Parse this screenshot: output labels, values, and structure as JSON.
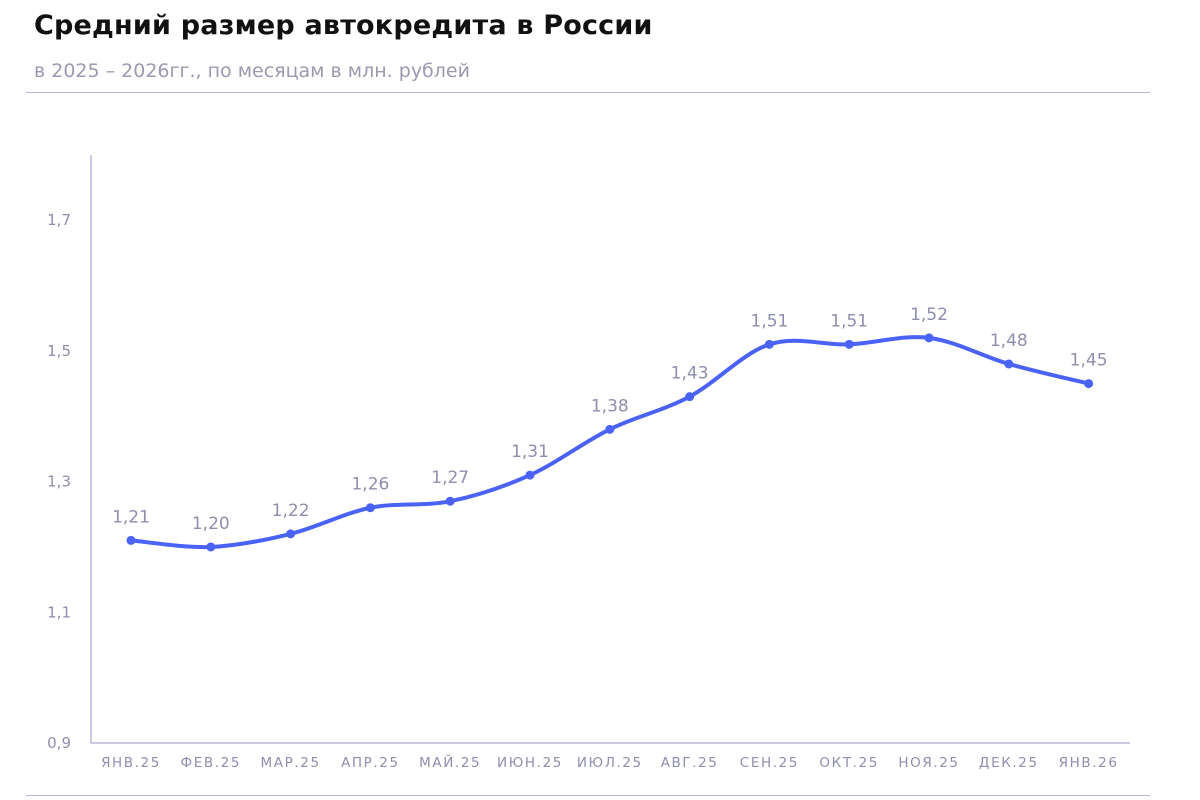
{
  "header": {
    "title": "Средний размер автокредита в России",
    "subtitle": "в 2025 – 2026гг., по месяцам в млн. рублей"
  },
  "chart_data": {
    "type": "line",
    "categories": [
      "ЯНВ.25",
      "ФЕВ.25",
      "МАР.25",
      "АПР.25",
      "МАЙ.25",
      "ИЮН.25",
      "ИЮЛ.25",
      "АВГ.25",
      "СЕН.25",
      "ОКТ.25",
      "НОЯ.25",
      "ДЕК.25",
      "ЯНВ.26"
    ],
    "series": [
      {
        "values": [
          1.21,
          1.2,
          1.22,
          1.26,
          1.27,
          1.31,
          1.38,
          1.43,
          1.51,
          1.51,
          1.52,
          1.48,
          1.45
        ],
        "labels": [
          "1,21",
          "1,20",
          "1,22",
          "1,26",
          "1,27",
          "1,31",
          "1,38",
          "1,43",
          "1,51",
          "1,51",
          "1,52",
          "1,48",
          "1,45"
        ]
      }
    ],
    "yticks": [
      0.9,
      1.1,
      1.3,
      1.5,
      1.7
    ],
    "ytick_labels": [
      "0,9",
      "1,1",
      "1,3",
      "1,5",
      "1,7"
    ],
    "ylim": [
      0.9,
      1.8
    ],
    "grid": false,
    "line_color": "#4a62f5",
    "label_color": "#8e8eae"
  }
}
